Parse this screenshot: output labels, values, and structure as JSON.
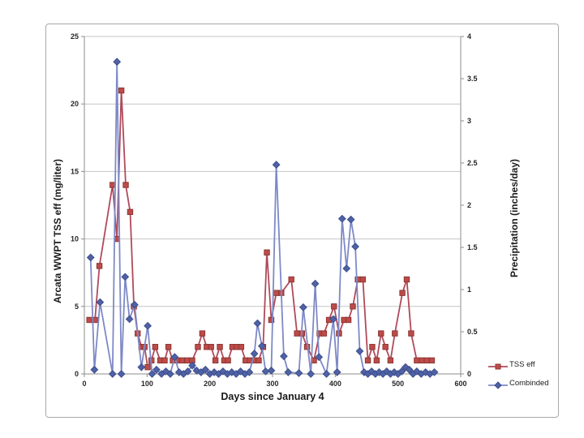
{
  "figure": {
    "background": "#ffffff",
    "frame_border_color": "#a9a9a9",
    "gridline_color": "#c6c6c6",
    "axis_line_color": "#8c8c8c",
    "tick_label_color": "#262626"
  },
  "chart_data": {
    "type": "line",
    "title": "",
    "x_axis": {
      "label": "Days since January 4",
      "min": 0,
      "max": 600,
      "ticks": [
        0,
        100,
        200,
        300,
        400,
        500,
        600
      ]
    },
    "y_left": {
      "label": "Arcata WWPT TSS eff (mg/liter)",
      "min": 0,
      "max": 25,
      "ticks": [
        0,
        5,
        10,
        15,
        20,
        25
      ]
    },
    "y_right": {
      "label": "Precipitation (inches/day)",
      "min": 0,
      "max": 4,
      "ticks": [
        0,
        0.5,
        1,
        1.5,
        2,
        2.5,
        3,
        3.5,
        4
      ]
    },
    "grid": {
      "horizontal_major": true,
      "left_axis_step": 5,
      "vertical": false
    },
    "legend": {
      "position": "right-bottom"
    },
    "series": [
      {
        "name": "TSS eff",
        "axis": "left",
        "marker": "square",
        "marker_color": "#be4b48",
        "marker_edge": "#8c3734",
        "line_color": "#b04a5a",
        "points": [
          [
            8,
            4
          ],
          [
            17,
            4
          ],
          [
            24,
            8
          ],
          [
            45,
            14
          ],
          [
            52,
            10
          ],
          [
            59,
            21
          ],
          [
            66,
            14
          ],
          [
            73,
            12
          ],
          [
            79,
            5
          ],
          [
            85,
            3
          ],
          [
            91,
            2
          ],
          [
            96,
            2
          ],
          [
            101,
            0.5
          ],
          [
            107,
            1
          ],
          [
            113,
            2
          ],
          [
            121,
            1
          ],
          [
            128,
            1
          ],
          [
            134,
            2
          ],
          [
            141,
            1
          ],
          [
            148,
            1
          ],
          [
            156,
            1
          ],
          [
            164,
            1
          ],
          [
            172,
            1
          ],
          [
            181,
            2
          ],
          [
            188,
            3
          ],
          [
            195,
            2
          ],
          [
            202,
            2
          ],
          [
            209,
            1
          ],
          [
            216,
            2
          ],
          [
            223,
            1
          ],
          [
            229,
            1
          ],
          [
            236,
            2
          ],
          [
            243,
            2
          ],
          [
            250,
            2
          ],
          [
            257,
            1
          ],
          [
            264,
            1
          ],
          [
            271,
            1
          ],
          [
            278,
            1
          ],
          [
            285,
            2
          ],
          [
            291,
            9
          ],
          [
            298,
            4
          ],
          [
            306,
            6
          ],
          [
            314,
            6
          ],
          [
            330,
            7
          ],
          [
            339,
            3
          ],
          [
            347,
            3
          ],
          [
            355,
            2
          ],
          [
            366,
            1
          ],
          [
            375,
            3
          ],
          [
            382,
            3
          ],
          [
            390,
            4
          ],
          [
            398,
            5
          ],
          [
            406,
            3
          ],
          [
            414,
            4
          ],
          [
            421,
            4
          ],
          [
            428,
            5
          ],
          [
            436,
            7
          ],
          [
            444,
            7
          ],
          [
            452,
            1
          ],
          [
            459,
            2
          ],
          [
            466,
            1
          ],
          [
            473,
            3
          ],
          [
            480,
            2
          ],
          [
            488,
            1
          ],
          [
            495,
            3
          ],
          [
            507,
            6
          ],
          [
            514,
            7
          ],
          [
            521,
            3
          ],
          [
            530,
            1
          ],
          [
            538,
            1
          ],
          [
            546,
            1
          ],
          [
            554,
            1
          ]
        ]
      },
      {
        "name": "Combinded",
        "axis": "right",
        "marker": "diamond",
        "marker_color": "#4f62a6",
        "marker_edge": "#3d4e8c",
        "line_color": "#7e89c6",
        "points": [
          [
            10,
            1.38
          ],
          [
            16,
            0.05
          ],
          [
            25,
            0.85
          ],
          [
            45,
            0
          ],
          [
            52,
            3.7
          ],
          [
            59,
            0
          ],
          [
            65,
            1.15
          ],
          [
            72,
            0.65
          ],
          [
            80,
            0.82
          ],
          [
            91,
            0.08
          ],
          [
            101,
            0.57
          ],
          [
            108,
            0
          ],
          [
            115,
            0.05
          ],
          [
            123,
            0
          ],
          [
            130,
            0.03
          ],
          [
            137,
            0
          ],
          [
            144,
            0.2
          ],
          [
            151,
            0.02
          ],
          [
            158,
            0
          ],
          [
            165,
            0.03
          ],
          [
            172,
            0.1
          ],
          [
            179,
            0.04
          ],
          [
            186,
            0.02
          ],
          [
            193,
            0.05
          ],
          [
            200,
            0
          ],
          [
            207,
            0.02
          ],
          [
            214,
            0
          ],
          [
            221,
            0.03
          ],
          [
            228,
            0
          ],
          [
            235,
            0.02
          ],
          [
            242,
            0
          ],
          [
            249,
            0.03
          ],
          [
            256,
            0
          ],
          [
            263,
            0.02
          ],
          [
            271,
            0.24
          ],
          [
            276,
            0.6
          ],
          [
            283,
            0.33
          ],
          [
            289,
            0.03
          ],
          [
            298,
            0.04
          ],
          [
            306,
            2.48
          ],
          [
            318,
            0.21
          ],
          [
            325,
            0.02
          ],
          [
            342,
            0.01
          ],
          [
            349,
            0.79
          ],
          [
            361,
            0
          ],
          [
            368,
            1.07
          ],
          [
            374,
            0.2
          ],
          [
            386,
            0
          ],
          [
            397,
            0.65
          ],
          [
            403,
            0.02
          ],
          [
            411,
            1.84
          ],
          [
            418,
            1.25
          ],
          [
            425,
            1.83
          ],
          [
            432,
            1.51
          ],
          [
            439,
            0.27
          ],
          [
            446,
            0.02
          ],
          [
            452,
            0
          ],
          [
            458,
            0.03
          ],
          [
            464,
            0
          ],
          [
            470,
            0.02
          ],
          [
            476,
            0
          ],
          [
            482,
            0.03
          ],
          [
            488,
            0
          ],
          [
            494,
            0.02
          ],
          [
            500,
            0
          ],
          [
            506,
            0.03
          ],
          [
            512,
            0.08
          ],
          [
            518,
            0.05
          ],
          [
            524,
            0
          ],
          [
            530,
            0.03
          ],
          [
            537,
            0
          ],
          [
            544,
            0.02
          ],
          [
            551,
            0
          ],
          [
            558,
            0.02
          ]
        ]
      }
    ]
  }
}
